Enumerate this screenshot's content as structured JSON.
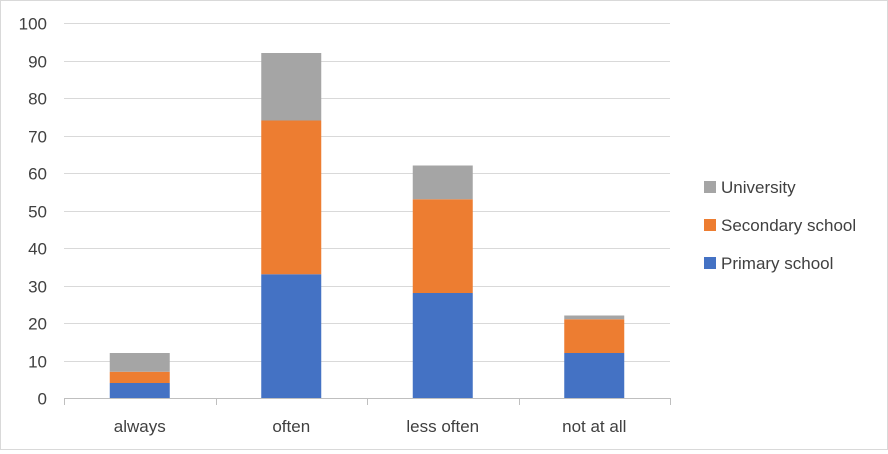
{
  "chart_data": {
    "type": "bar",
    "stacked": true,
    "categories": [
      "always",
      "often",
      "less often",
      "not at all"
    ],
    "series": [
      {
        "name": "Primary school",
        "color": "#4472c4",
        "values": [
          4,
          33,
          28,
          12
        ]
      },
      {
        "name": "Secondary school",
        "color": "#ed7d31",
        "values": [
          3,
          41,
          25,
          9
        ]
      },
      {
        "name": "University",
        "color": "#a5a5a5",
        "values": [
          5,
          18,
          9,
          1
        ]
      }
    ],
    "yticks": [
      "0",
      "10",
      "20",
      "30",
      "40",
      "50",
      "60",
      "70",
      "80",
      "90",
      "100"
    ],
    "ylim": [
      0,
      100
    ],
    "grid": true,
    "legend_position": "right",
    "legend_order": [
      "University",
      "Secondary school",
      "Primary school"
    ]
  }
}
